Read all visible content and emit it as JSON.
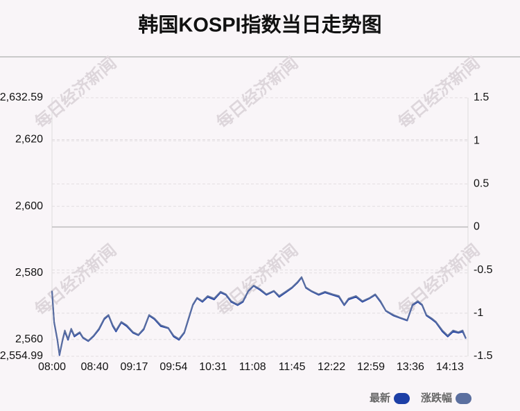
{
  "chart_data": {
    "type": "line",
    "title": "韩国KOSPI指数当日走势图",
    "watermark": "每日经济新闻",
    "x": [
      "08:00",
      "08:02",
      "08:05",
      "08:07",
      "08:10",
      "08:12",
      "08:15",
      "08:18",
      "08:21",
      "08:26",
      "08:29",
      "08:34",
      "08:39",
      "08:44",
      "08:49",
      "08:53",
      "08:57",
      "09:00",
      "09:05",
      "09:10",
      "09:16",
      "09:21",
      "09:26",
      "09:31",
      "09:36",
      "09:42",
      "09:49",
      "09:54",
      "09:59",
      "10:04",
      "10:08",
      "10:12",
      "10:16",
      "10:21",
      "10:26",
      "10:32",
      "10:38",
      "10:43",
      "10:48",
      "10:54",
      "10:59",
      "11:04",
      "11:09",
      "11:15",
      "11:21",
      "11:28",
      "11:33",
      "11:39",
      "11:45",
      "11:50",
      "11:54",
      "11:58",
      "12:03",
      "12:10",
      "12:16",
      "12:23",
      "12:29",
      "12:34",
      "12:38",
      "12:45",
      "12:51",
      "12:58",
      "13:03",
      "13:08",
      "13:13",
      "13:20",
      "13:26",
      "13:33",
      "13:38",
      "13:43",
      "13:47",
      "13:51",
      "13:56",
      "14:00",
      "14:06",
      "14:11",
      "14:16",
      "14:21",
      "14:25",
      "14:28"
    ],
    "xlim": [
      "08:00",
      "14:30"
    ],
    "xticks": [
      "08:00",
      "08:40",
      "09:17",
      "09:54",
      "10:31",
      "11:08",
      "11:45",
      "12:22",
      "12:59",
      "13:36",
      "14:13"
    ],
    "series": [
      {
        "name": "最新",
        "color": "#1d3fa6",
        "values": [
          2574.5,
          2565.1,
          2559.9,
          2555.3,
          2559.9,
          2562.4,
          2559.9,
          2563,
          2560.9,
          2562,
          2560.5,
          2559.5,
          2561,
          2563,
          2566.1,
          2567.2,
          2564,
          2562.4,
          2565.1,
          2564,
          2562,
          2561.3,
          2563,
          2567.2,
          2566.1,
          2564,
          2563.4,
          2560.9,
          2559.9,
          2562,
          2566.1,
          2570.3,
          2572.4,
          2571.3,
          2572.8,
          2572,
          2574.1,
          2573.4,
          2571.3,
          2570.3,
          2571.3,
          2574.5,
          2576.1,
          2574.9,
          2573.4,
          2574.5,
          2572.8,
          2574.1,
          2575.5,
          2577,
          2578.6,
          2575.5,
          2574.5,
          2573.4,
          2574.1,
          2573.4,
          2572.8,
          2570.3,
          2572,
          2572.8,
          2571.3,
          2572.4,
          2573.4,
          2571.3,
          2568.6,
          2567.2,
          2566.5,
          2565.7,
          2570.3,
          2571.3,
          2570.3,
          2567.2,
          2566.1,
          2565.1,
          2562.4,
          2560.9,
          2562.4,
          2562,
          2562.4,
          2560.3
        ]
      },
      {
        "name": "涨跌幅",
        "color": "#5b6f9f",
        "axis": "y2",
        "values": [
          -0.74,
          -1.1,
          -1.3,
          -1.48,
          -1.3,
          -1.2,
          -1.3,
          -1.18,
          -1.26,
          -1.22,
          -1.28,
          -1.32,
          -1.26,
          -1.18,
          -1.06,
          -1.02,
          -1.14,
          -1.2,
          -1.1,
          -1.14,
          -1.22,
          -1.25,
          -1.18,
          -1.02,
          -1.06,
          -1.14,
          -1.17,
          -1.26,
          -1.3,
          -1.22,
          -1.06,
          -0.9,
          -0.82,
          -0.86,
          -0.8,
          -0.83,
          -0.75,
          -0.78,
          -0.86,
          -0.9,
          -0.86,
          -0.74,
          -0.68,
          -0.72,
          -0.78,
          -0.74,
          -0.8,
          -0.75,
          -0.7,
          -0.64,
          -0.58,
          -0.7,
          -0.74,
          -0.78,
          -0.75,
          -0.78,
          -0.8,
          -0.9,
          -0.83,
          -0.8,
          -0.86,
          -0.82,
          -0.78,
          -0.86,
          -0.97,
          -1.02,
          -1.05,
          -1.08,
          -0.9,
          -0.86,
          -0.9,
          -1.02,
          -1.06,
          -1.1,
          -1.2,
          -1.26,
          -1.2,
          -1.22,
          -1.2,
          -1.29
        ]
      }
    ],
    "ylim": [
      2554.99,
      2632.59
    ],
    "yticks": [
      {
        "value": 2554.99,
        "label": "2,554.99"
      },
      {
        "value": 2560,
        "label": "2,560"
      },
      {
        "value": 2580,
        "label": "2,580"
      },
      {
        "value": 2600,
        "label": "2,600"
      },
      {
        "value": 2620,
        "label": "2,620"
      },
      {
        "value": 2632.59,
        "label": "2,632.59"
      }
    ],
    "y2lim": [
      -1.5,
      1.5
    ],
    "y2ticks": [
      -1.5,
      -1,
      -0.5,
      0,
      0.5,
      1,
      1.5
    ],
    "grid": true
  }
}
